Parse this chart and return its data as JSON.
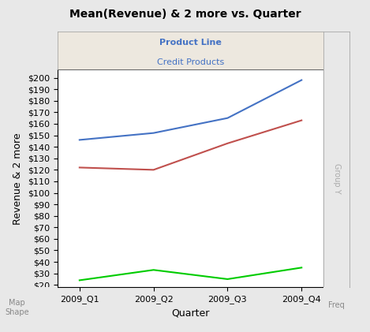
{
  "title": "Mean(Revenue) & 2 more vs. Quarter",
  "panel_label1": "Product Line",
  "panel_label2": "Credit Products",
  "xlabel": "Quarter",
  "ylabel": "Revenue & 2 more",
  "x_labels": [
    "2009_Q1",
    "2009_Q2",
    "2009_Q3",
    "2009_Q4"
  ],
  "blue_line": [
    146,
    152,
    165,
    198
  ],
  "red_line": [
    122,
    120,
    143,
    163
  ],
  "green_line": [
    24,
    33,
    25,
    35
  ],
  "blue_color": "#4472C4",
  "red_color": "#C0504D",
  "green_color": "#00CC00",
  "y_ticks": [
    20,
    30,
    40,
    50,
    60,
    70,
    80,
    90,
    100,
    110,
    120,
    130,
    140,
    150,
    160,
    170,
    180,
    190,
    200
  ],
  "ylim": [
    18,
    207
  ],
  "bg_color": "#FFFFFF",
  "fig_bg": "#E8E8E8",
  "panel_bg": "#EDE8DF",
  "right_panel_bg": "#E8E8E8",
  "panel_label1_color": "#4472C4",
  "panel_label2_color": "#4472C4",
  "right_label": "Group Y",
  "bottom_right_label": "Freq",
  "corner_label": "Map\nShape"
}
